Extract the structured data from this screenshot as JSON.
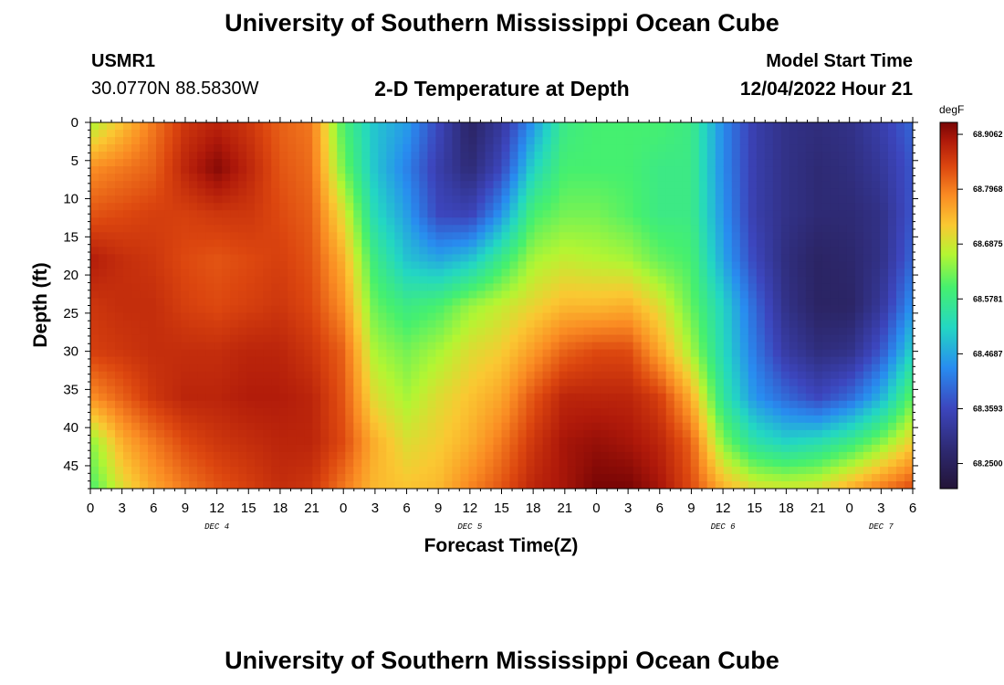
{
  "title": "University of Southern Mississippi Ocean Cube",
  "station": "USMR1",
  "coordinates": "30.0770N  88.5830W",
  "subtitle": "2-D Temperature at Depth",
  "model_start_label": "Model Start Time",
  "model_start_value": "12/04/2022 Hour 21",
  "colorbar": {
    "units": "degF",
    "tick_labels": [
      "68.9062",
      "68.7968",
      "68.6875",
      "68.5781",
      "68.4687",
      "68.3593",
      "68.2500"
    ],
    "tick_values": [
      68.9062,
      68.7968,
      68.6875,
      68.5781,
      68.4687,
      68.3593,
      68.25
    ],
    "min": 68.2,
    "max": 68.93
  },
  "chart_data": {
    "type": "heatmap",
    "xlabel": "Forecast Time(Z)",
    "ylabel": "Depth (ft)",
    "xlim": [
      0,
      78
    ],
    "ylim": [
      48,
      0
    ],
    "x_tick_labels": [
      "0",
      "3",
      "6",
      "9",
      "12",
      "15",
      "18",
      "21",
      "0",
      "3",
      "6",
      "9",
      "12",
      "15",
      "18",
      "21",
      "0",
      "3",
      "6",
      "9",
      "12",
      "15",
      "18",
      "21",
      "0",
      "3",
      "6"
    ],
    "day_labels": [
      {
        "hour": 12,
        "text": "DEC 4"
      },
      {
        "hour": 36,
        "text": "DEC 5"
      },
      {
        "hour": 60,
        "text": "DEC 6"
      },
      {
        "hour": 75,
        "text": "DEC 7"
      }
    ],
    "y_tick_labels": [
      "0",
      "5",
      "10",
      "15",
      "20",
      "25",
      "30",
      "35",
      "40",
      "45"
    ],
    "y_tick_values": [
      0,
      5,
      10,
      15,
      20,
      25,
      30,
      35,
      40,
      45
    ],
    "grid_hours": [
      0,
      3,
      6,
      9,
      12,
      15,
      18,
      21,
      24,
      27,
      30,
      33,
      36,
      39,
      42,
      45,
      48,
      51,
      54,
      57,
      60,
      63,
      66,
      69,
      72,
      75,
      78
    ],
    "grid_depths": [
      0,
      6,
      12,
      18,
      24,
      30,
      36,
      42,
      48
    ],
    "temperature_degF": [
      [
        68.66,
        68.78,
        68.83,
        68.89,
        68.86,
        68.85,
        68.78,
        68.64,
        68.6
      ],
      [
        68.73,
        68.8,
        68.84,
        68.87,
        68.87,
        68.86,
        68.82,
        68.75,
        68.7
      ],
      [
        68.8,
        68.82,
        68.85,
        68.86,
        68.87,
        68.87,
        68.86,
        68.8,
        68.76
      ],
      [
        68.86,
        68.88,
        68.85,
        68.84,
        68.85,
        68.87,
        68.88,
        68.84,
        68.8
      ],
      [
        68.88,
        68.92,
        68.86,
        68.83,
        68.84,
        68.87,
        68.88,
        68.86,
        68.83
      ],
      [
        68.86,
        68.88,
        68.86,
        68.84,
        68.85,
        68.88,
        68.89,
        68.87,
        68.85
      ],
      [
        68.82,
        68.83,
        68.84,
        68.85,
        68.86,
        68.88,
        68.89,
        68.88,
        68.87
      ],
      [
        68.8,
        68.81,
        68.82,
        68.83,
        68.84,
        68.86,
        68.88,
        68.88,
        68.86
      ],
      [
        68.6,
        68.63,
        68.7,
        68.75,
        68.78,
        68.82,
        68.83,
        68.84,
        68.8
      ],
      [
        68.5,
        68.5,
        68.53,
        68.58,
        68.62,
        68.66,
        68.7,
        68.75,
        68.74
      ],
      [
        68.46,
        68.43,
        68.46,
        68.5,
        68.58,
        68.63,
        68.66,
        68.7,
        68.73
      ],
      [
        68.36,
        68.34,
        68.36,
        68.47,
        68.6,
        68.66,
        68.7,
        68.72,
        68.74
      ],
      [
        68.26,
        68.28,
        68.35,
        68.5,
        68.65,
        68.7,
        68.73,
        68.75,
        68.79
      ],
      [
        68.32,
        68.36,
        68.45,
        68.58,
        68.68,
        68.72,
        68.76,
        68.8,
        68.83
      ],
      [
        68.45,
        68.52,
        68.6,
        68.66,
        68.71,
        68.77,
        68.83,
        68.86,
        68.88
      ],
      [
        68.58,
        68.6,
        68.63,
        68.68,
        68.74,
        68.82,
        68.88,
        68.9,
        68.9
      ],
      [
        68.6,
        68.6,
        68.63,
        68.67,
        68.74,
        68.84,
        68.88,
        68.91,
        68.93
      ],
      [
        68.6,
        68.6,
        68.61,
        68.66,
        68.75,
        68.84,
        68.88,
        68.9,
        68.93
      ],
      [
        68.6,
        68.58,
        68.58,
        68.62,
        68.7,
        68.76,
        68.85,
        68.88,
        68.9
      ],
      [
        68.58,
        68.58,
        68.58,
        68.6,
        68.62,
        68.66,
        68.75,
        68.82,
        68.84
      ],
      [
        68.44,
        68.44,
        68.45,
        68.47,
        68.52,
        68.53,
        68.56,
        68.64,
        68.75
      ],
      [
        68.34,
        68.34,
        68.34,
        68.36,
        68.4,
        68.42,
        68.45,
        68.55,
        68.7
      ],
      [
        68.3,
        68.3,
        68.3,
        68.29,
        68.3,
        68.33,
        68.4,
        68.52,
        68.69
      ],
      [
        68.29,
        68.28,
        68.28,
        68.26,
        68.26,
        68.29,
        68.36,
        68.54,
        68.7
      ],
      [
        68.3,
        68.29,
        68.28,
        68.27,
        68.26,
        68.3,
        68.4,
        68.58,
        68.75
      ],
      [
        68.34,
        68.32,
        68.3,
        68.3,
        68.32,
        68.38,
        68.48,
        68.64,
        68.8
      ],
      [
        68.4,
        68.38,
        68.38,
        68.4,
        68.45,
        68.52,
        68.62,
        68.72,
        68.84
      ]
    ]
  }
}
